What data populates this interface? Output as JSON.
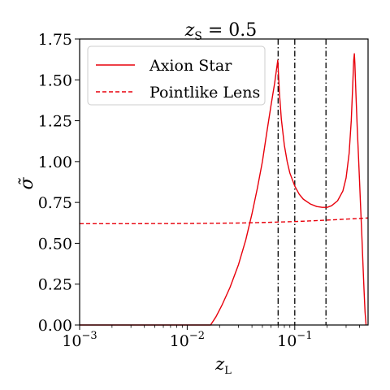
{
  "chart_data": {
    "type": "line",
    "title_parts": {
      "main": "z",
      "sub": "S",
      "suffix": " = 0.5"
    },
    "xlabel_parts": {
      "main": "z",
      "sub": "L"
    },
    "ylabel": "σ̃",
    "x_scale": "log",
    "xlim": [
      0.001,
      0.48
    ],
    "ylim": [
      0,
      1.75
    ],
    "x_ticks": [
      {
        "value": 0.001,
        "base": "10",
        "exp": "−3"
      },
      {
        "value": 0.01,
        "base": "10",
        "exp": "−2"
      },
      {
        "value": 0.1,
        "base": "10",
        "exp": "−1"
      }
    ],
    "y_ticks": [
      {
        "value": 0,
        "label": "0.00"
      },
      {
        "value": 0.25,
        "label": "0.25"
      },
      {
        "value": 0.5,
        "label": "0.50"
      },
      {
        "value": 0.75,
        "label": "0.75"
      },
      {
        "value": 1.0,
        "label": "1.00"
      },
      {
        "value": 1.25,
        "label": "1.25"
      },
      {
        "value": 1.5,
        "label": "1.50"
      },
      {
        "value": 1.75,
        "label": "1.75"
      }
    ],
    "grid": false,
    "legend_position": "top-left",
    "series": [
      {
        "name": "Axion Star",
        "style": "solid",
        "color": "#e8000b",
        "x": [
          0.001,
          0.0165,
          0.0185,
          0.021,
          0.025,
          0.03,
          0.035,
          0.04,
          0.045,
          0.05,
          0.055,
          0.06,
          0.065,
          0.0695,
          0.072,
          0.075,
          0.08,
          0.085,
          0.09,
          0.1,
          0.11,
          0.12,
          0.14,
          0.16,
          0.18,
          0.2,
          0.22,
          0.25,
          0.28,
          0.3,
          0.32,
          0.335,
          0.345,
          0.353,
          0.358,
          0.362,
          0.37,
          0.38,
          0.39,
          0.4,
          0.41,
          0.42,
          0.43,
          0.44,
          0.45,
          0.46
        ],
        "y": [
          0.0,
          0.0,
          0.05,
          0.12,
          0.23,
          0.37,
          0.52,
          0.68,
          0.84,
          1.0,
          1.18,
          1.34,
          1.48,
          1.62,
          1.42,
          1.26,
          1.1,
          1.0,
          0.93,
          0.85,
          0.8,
          0.77,
          0.74,
          0.725,
          0.72,
          0.72,
          0.73,
          0.76,
          0.82,
          0.9,
          1.05,
          1.25,
          1.45,
          1.62,
          1.66,
          1.6,
          1.42,
          1.22,
          1.05,
          0.88,
          0.71,
          0.55,
          0.38,
          0.22,
          0.08,
          0.0
        ]
      },
      {
        "name": "Pointlike Lens",
        "style": "dashed",
        "color": "#e8000b",
        "x": [
          0.001,
          0.003,
          0.01,
          0.03,
          0.05,
          0.07,
          0.1,
          0.15,
          0.2,
          0.25,
          0.3,
          0.35,
          0.4,
          0.45,
          0.48
        ],
        "y": [
          0.62,
          0.62,
          0.621,
          0.624,
          0.627,
          0.63,
          0.633,
          0.638,
          0.642,
          0.645,
          0.648,
          0.65,
          0.652,
          0.654,
          0.655
        ]
      }
    ],
    "vlines": [
      {
        "x": 0.07,
        "style": "dashdot",
        "color": "#000000"
      },
      {
        "x": 0.1,
        "style": "dashdot",
        "color": "#000000"
      },
      {
        "x": 0.195,
        "style": "dashdot",
        "color": "#000000"
      }
    ]
  }
}
